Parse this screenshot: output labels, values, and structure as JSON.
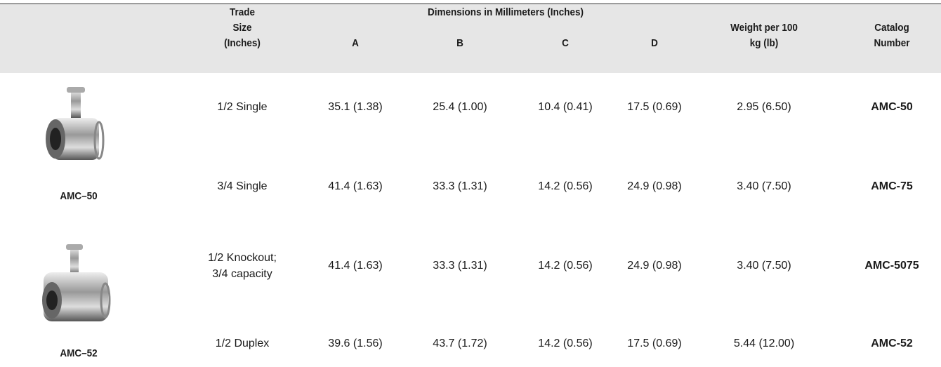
{
  "header": {
    "trade_size": [
      "Trade",
      "Size",
      "(Inches)"
    ],
    "dimensions": "Dimensions in Millimeters (Inches)",
    "columns": [
      "A",
      "B",
      "C",
      "D"
    ],
    "weight": [
      "Weight per 100",
      "kg (lb)"
    ],
    "catalog": [
      "Catalog",
      "Number"
    ]
  },
  "products": [
    {
      "label": "AMC–50"
    },
    {
      "label": "AMC–52"
    }
  ],
  "rows": [
    {
      "trade_size": [
        "1/2 Single"
      ],
      "a": "35.1 (1.38)",
      "b": "25.4 (1.00)",
      "c": "10.4 (0.41)",
      "d": "17.5 (0.69)",
      "weight": "2.95 (6.50)",
      "catalog": "AMC-50"
    },
    {
      "trade_size": [
        "3/4 Single"
      ],
      "a": "41.4 (1.63)",
      "b": "33.3 (1.31)",
      "c": "14.2 (0.56)",
      "d": "24.9 (0.98)",
      "weight": "3.40 (7.50)",
      "catalog": "AMC-75"
    },
    {
      "trade_size": [
        "1/2 Knockout;",
        "3/4 capacity"
      ],
      "a": "41.4 (1.63)",
      "b": "33.3 (1.31)",
      "c": "14.2 (0.56)",
      "d": "24.9 (0.98)",
      "weight": "3.40 (7.50)",
      "catalog": "AMC-5075"
    },
    {
      "trade_size": [
        "1/2 Duplex"
      ],
      "a": "39.6 (1.56)",
      "b": "43.7 (1.72)",
      "c": "14.2 (0.56)",
      "d": "17.5 (0.69)",
      "weight": "5.44 (12.00)",
      "catalog": "AMC-52"
    }
  ]
}
